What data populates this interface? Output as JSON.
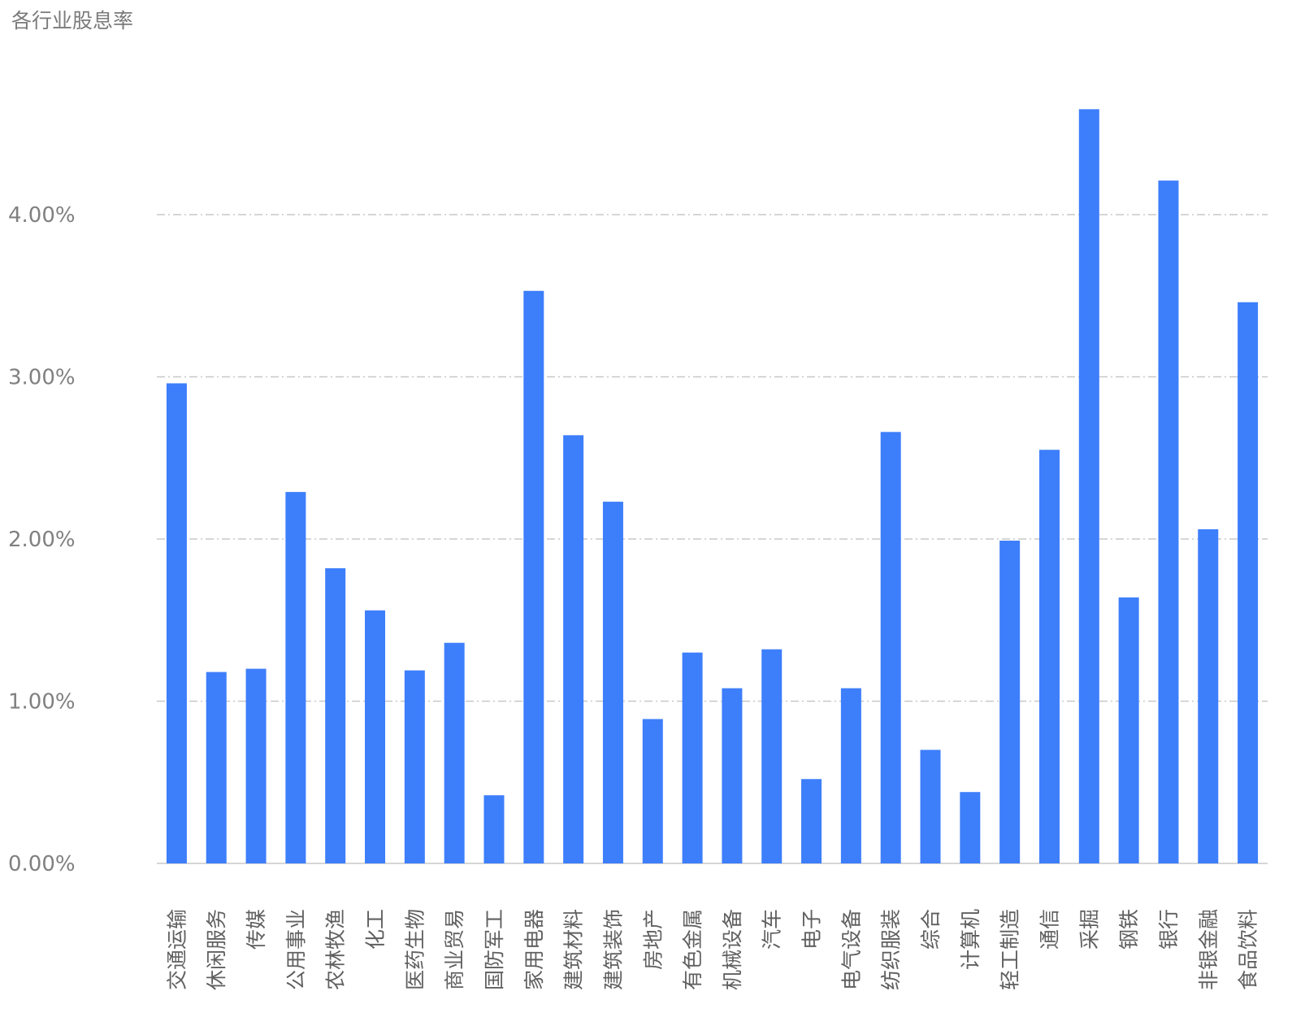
{
  "chart_data": {
    "type": "bar",
    "title": "各行业股息率",
    "xlabel": "",
    "ylabel": "",
    "ylim": [
      0,
      0.048
    ],
    "yticks": [
      0,
      0.01,
      0.02,
      0.03,
      0.04
    ],
    "ytick_labels": [
      "0.00%",
      "1.00%",
      "2.00%",
      "3.00%",
      "4.00%"
    ],
    "grid": true,
    "legend": "none",
    "bar_color": "#3d7efb",
    "categories": [
      "交通运输",
      "休闲服务",
      "传媒",
      "公用事业",
      "农林牧渔",
      "化工",
      "医药生物",
      "商业贸易",
      "国防军工",
      "家用电器",
      "建筑材料",
      "建筑装饰",
      "房地产",
      "有色金属",
      "机械设备",
      "汽车",
      "电子",
      "电气设备",
      "纺织服装",
      "综合",
      "计算机",
      "轻工制造",
      "通信",
      "采掘",
      "钢铁",
      "银行",
      "非银金融",
      "食品饮料"
    ],
    "values": [
      0.0296,
      0.0118,
      0.012,
      0.0229,
      0.0182,
      0.0156,
      0.0119,
      0.0136,
      0.0042,
      0.0353,
      0.0264,
      0.0223,
      0.0089,
      0.013,
      0.0108,
      0.0132,
      0.0052,
      0.0108,
      0.0266,
      0.007,
      0.0044,
      0.0199,
      0.0255,
      0.0465,
      0.0164,
      0.0421,
      0.0206,
      0.0346
    ]
  }
}
